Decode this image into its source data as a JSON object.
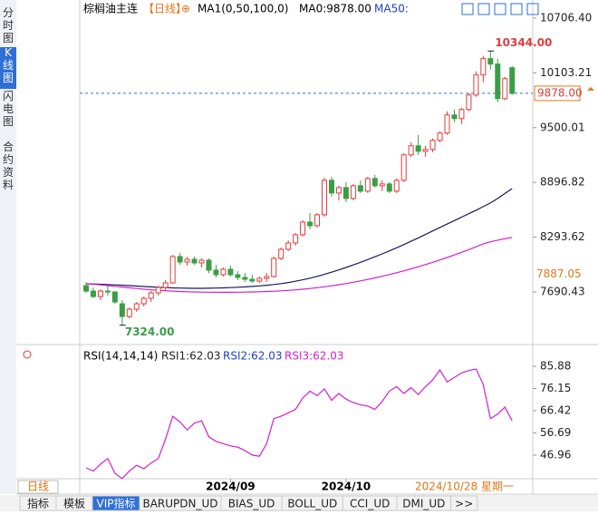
{
  "chart_data": {
    "type": "candlestick",
    "title": "棕榈油主连",
    "period": "【日线】",
    "indicator": "MA1(0,50,100,0)",
    "ma0_label": "MA0:9878.00",
    "ma50_label": "MA50:",
    "sidebar_tabs": [
      "分时图",
      "K线图",
      "闪电图",
      "合约资料"
    ],
    "toolbar_tabs": [
      "指标",
      "模板",
      "VIP指标",
      "BARUPDN_UD",
      "BIAS_UD",
      "BOLL_UD",
      "CCI_UD",
      "DMI_UD",
      ">>"
    ],
    "period_tab": "日线",
    "cursor_date": "2024/10/28 星期一",
    "categories": [
      null,
      null,
      null,
      null,
      null,
      null,
      null,
      null,
      null,
      null,
      null,
      null,
      null,
      null,
      null,
      null,
      null,
      null,
      null,
      null,
      "2024/09",
      null,
      null,
      null,
      null,
      null,
      null,
      null,
      null,
      null,
      null,
      null,
      null,
      null,
      null,
      null,
      "2024/10",
      null,
      null,
      null,
      null,
      null,
      null,
      null,
      null,
      null,
      null,
      null,
      null,
      null,
      null,
      null,
      null,
      null,
      null,
      null,
      null,
      null,
      null,
      null
    ],
    "open": [
      7760,
      7700,
      7640,
      7700,
      7690,
      7560,
      7420,
      7500,
      7560,
      7620,
      7680,
      7740,
      7790,
      8080,
      8020,
      8050,
      8010,
      8040,
      7930,
      7880,
      7940,
      7880,
      7850,
      7830,
      7810,
      7840,
      7860,
      8060,
      8160,
      8230,
      8320,
      8460,
      8420,
      8540,
      8920,
      8780,
      8840,
      8720,
      8860,
      8800,
      8940,
      8860,
      8880,
      8800,
      8920,
      9200,
      9300,
      9240,
      9260,
      9360,
      9440,
      9640,
      9600,
      9700,
      9860,
      10080,
      10260,
      10200,
      9820,
      10160
    ],
    "high": [
      7800,
      7740,
      7720,
      7760,
      7700,
      7600,
      7520,
      7580,
      7640,
      7700,
      7760,
      7820,
      8100,
      8120,
      8080,
      8080,
      8060,
      8060,
      7990,
      7960,
      7980,
      7920,
      7900,
      7880,
      7860,
      7900,
      8080,
      8180,
      8260,
      8340,
      8480,
      8560,
      8560,
      8950,
      8960,
      8860,
      8900,
      8880,
      8920,
      8960,
      8980,
      8920,
      8900,
      8940,
      9220,
      9340,
      9420,
      9300,
      9380,
      9460,
      9680,
      9700,
      9720,
      9880,
      10120,
      10290,
      10344,
      10260,
      10060,
      10180
    ],
    "low": [
      7680,
      7620,
      7600,
      7650,
      7560,
      7324,
      7400,
      7470,
      7530,
      7580,
      7650,
      7700,
      7780,
      7990,
      7980,
      7990,
      7960,
      7900,
      7850,
      7860,
      7860,
      7820,
      7800,
      7790,
      7790,
      7800,
      7850,
      8040,
      8140,
      8200,
      8300,
      8380,
      8400,
      8520,
      8740,
      8700,
      8680,
      8700,
      8780,
      8780,
      8840,
      8800,
      8780,
      8780,
      8900,
      9180,
      9200,
      9180,
      9230,
      9340,
      9420,
      9560,
      9540,
      9680,
      9840,
      10000,
      10140,
      9780,
      9800,
      9860
    ],
    "close": [
      7700,
      7640,
      7700,
      7690,
      7580,
      7420,
      7500,
      7560,
      7620,
      7680,
      7740,
      7790,
      8080,
      8020,
      8050,
      8010,
      8040,
      7930,
      7880,
      7940,
      7880,
      7850,
      7830,
      7810,
      7840,
      7860,
      8060,
      8160,
      8230,
      8320,
      8460,
      8420,
      8540,
      8920,
      8780,
      8840,
      8720,
      8860,
      8800,
      8940,
      8860,
      8880,
      8800,
      8920,
      9200,
      9300,
      9240,
      9260,
      9360,
      9440,
      9640,
      9600,
      9700,
      9860,
      10080,
      10260,
      10200,
      9820,
      10040,
      9878
    ],
    "up_color": "#e23b3b",
    "down_color": "#3a9e46",
    "lines": [
      {
        "color": "#1a1a5a",
        "values": [
          7780,
          7778,
          7775,
          7772,
          7768,
          7764,
          7760,
          7755,
          7750,
          7746,
          7742,
          7738,
          7735,
          7733,
          7731,
          7730,
          7730,
          7731,
          7733,
          7735,
          7738,
          7742,
          7746,
          7751,
          7757,
          7764,
          7772,
          7782,
          7794,
          7808,
          7824,
          7842,
          7862,
          7884,
          7908,
          7933,
          7960,
          7988,
          8017,
          8047,
          8078,
          8110,
          8143,
          8177,
          8212,
          8248,
          8285,
          8323,
          8362,
          8400,
          8438,
          8476,
          8514,
          8552,
          8590,
          8630,
          8670,
          8720,
          8775,
          8829
        ]
      },
      {
        "color": "#d21fd2",
        "values": [
          7780,
          7775,
          7768,
          7760,
          7752,
          7744,
          7736,
          7728,
          7720,
          7714,
          7708,
          7703,
          7699,
          7695,
          7692,
          7690,
          7688,
          7687,
          7686,
          7686,
          7686,
          7687,
          7688,
          7690,
          7692,
          7695,
          7698,
          7702,
          7707,
          7713,
          7720,
          7728,
          7737,
          7747,
          7758,
          7770,
          7783,
          7797,
          7812,
          7828,
          7845,
          7863,
          7882,
          7902,
          7923,
          7945,
          7968,
          7992,
          8017,
          8043,
          8070,
          8098,
          8127,
          8157,
          8188,
          8220,
          8242,
          8260,
          8276,
          8290
        ]
      }
    ],
    "ylim": [
      7131,
      10826
    ],
    "yticks": [
      {
        "value": 10706.4,
        "label": "10706.40"
      },
      10103.21,
      9500.01,
      8896.82,
      8293.62,
      7690.43
    ],
    "high_label": {
      "value": 10344,
      "label": "10344.00"
    },
    "low_label": {
      "value": 7324,
      "label": "7324.00"
    },
    "last_marker": {
      "value": 9878,
      "label": "9878.00"
    },
    "level_marker": 7887.05,
    "rsi": {
      "title": "RSI(14,14,14)",
      "labels": [
        "RSI1:62.03",
        "RSI2:62.03",
        "RSI3:62.03"
      ],
      "label_colors": [
        "#222222",
        "#1f3fbf",
        "#d21fd2"
      ],
      "color": "#d21fd2",
      "values": [
        41.4,
        40,
        43,
        45.5,
        39,
        36.7,
        40,
        42.5,
        41,
        43.5,
        45.5,
        54,
        64,
        61.5,
        58,
        61,
        62,
        55,
        53,
        52,
        51,
        50.5,
        49,
        47,
        46.5,
        52,
        63,
        64,
        65.5,
        67,
        72,
        75,
        73,
        76,
        71,
        74,
        71.5,
        70,
        69,
        68.5,
        67,
        70.5,
        75,
        77,
        74,
        76.5,
        73.5,
        77,
        80,
        84.3,
        79,
        81,
        83,
        84,
        84.7,
        78,
        63,
        65,
        68,
        62.03
      ],
      "ylim": [
        36.64,
        93.03
      ],
      "yticks": [
        85.88,
        76.15,
        66.42,
        56.69,
        46.96
      ]
    }
  }
}
